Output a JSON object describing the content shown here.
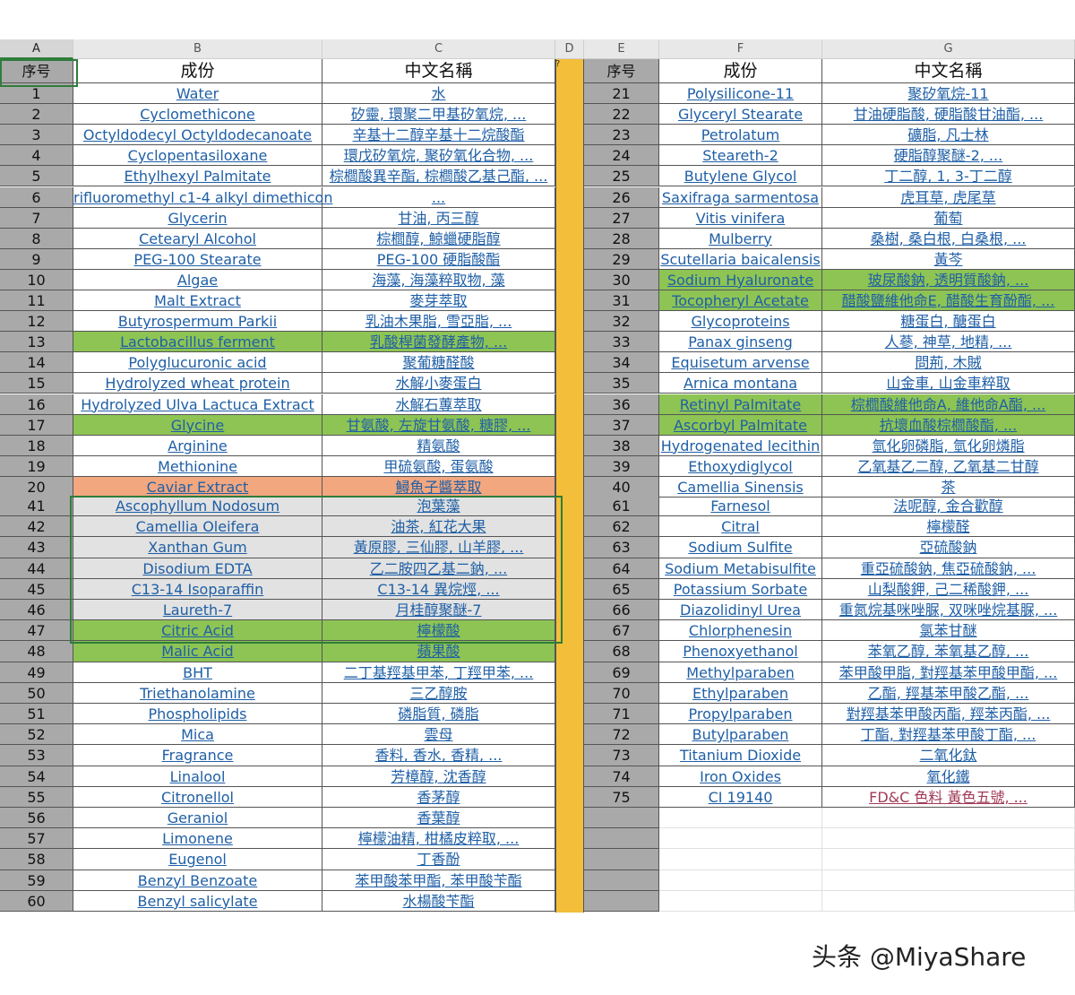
{
  "column_letters": [
    "A",
    "B",
    "C",
    "D",
    "E",
    "F",
    "G"
  ],
  "headers": {
    "num": "序号",
    "ingredient": "成份",
    "chinese": "中文名稱"
  },
  "comment_marker": "?",
  "left_rows": [
    {
      "n": "1",
      "en": "Water",
      "zh": "水",
      "hl": ""
    },
    {
      "n": "2",
      "en": "Cyclomethicone",
      "zh": "矽靈, 環聚二甲基矽氧烷, ...",
      "hl": ""
    },
    {
      "n": "3",
      "en": "Octyldodecyl Octyldodecanoate",
      "zh": "辛基十二醇辛基十二烷酸酯",
      "hl": ""
    },
    {
      "n": "4",
      "en": "Cyclopentasiloxane",
      "zh": "環戊矽氧烷, 聚矽氧化合物, ...",
      "hl": ""
    },
    {
      "n": "5",
      "en": "Ethylhexyl Palmitate",
      "zh": "棕櫚酸異辛酯, 棕櫚酸乙基己酯, ...",
      "hl": ""
    },
    {
      "n": "6",
      "en": "rifluoromethyl c1-4 alkyl dimethicon",
      "zh": "...",
      "hl": ""
    },
    {
      "n": "7",
      "en": "Glycerin",
      "zh": "甘油, 丙三醇",
      "hl": ""
    },
    {
      "n": "8",
      "en": "Cetearyl Alcohol",
      "zh": "棕櫚醇, 鯨蠟硬脂醇",
      "hl": ""
    },
    {
      "n": "9",
      "en": "PEG-100 Stearate",
      "zh": "PEG-100 硬脂酸酯",
      "hl": ""
    },
    {
      "n": "10",
      "en": "Algae",
      "zh": "海藻, 海藻粹取物, 藻",
      "hl": ""
    },
    {
      "n": "11",
      "en": "Malt Extract",
      "zh": "麥芽萃取",
      "hl": ""
    },
    {
      "n": "12",
      "en": "Butyrospermum Parkii",
      "zh": "乳油木果脂, 雪亞脂, ...",
      "hl": ""
    },
    {
      "n": "13",
      "en": "Lactobacillus ferment",
      "zh": "乳酸桿菌發酵產物, ...",
      "hl": "green"
    },
    {
      "n": "14",
      "en": "Polyglucuronic acid",
      "zh": "聚葡糖醛酸",
      "hl": ""
    },
    {
      "n": "15",
      "en": "Hydrolyzed wheat protein",
      "zh": "水解小麥蛋白",
      "hl": ""
    },
    {
      "n": "16",
      "en": "Hydrolyzed Ulva Lactuca Extract",
      "zh": "水解石蓴萃取",
      "hl": ""
    },
    {
      "n": "17",
      "en": "Glycine",
      "zh": "甘氨酸, 左旋甘氨酸, 糖膠, ...",
      "hl": "green"
    },
    {
      "n": "18",
      "en": "Arginine",
      "zh": "精氨酸",
      "hl": ""
    },
    {
      "n": "19",
      "en": "Methionine",
      "zh": "甲硫氨酸, 蛋氨酸",
      "hl": ""
    },
    {
      "n": "20",
      "en": "Caviar Extract",
      "zh": "鱘魚子醬萃取",
      "hl": "orange"
    },
    {
      "n": "41",
      "en": "Ascophyllum Nodosum",
      "zh": "泡葉藻",
      "hl": "gray"
    },
    {
      "n": "42",
      "en": "Camellia Oleifera",
      "zh": "油茶, 紅花大果",
      "hl": "gray"
    },
    {
      "n": "43",
      "en": "Xanthan Gum",
      "zh": "黃原膠, 三仙膠, 山羊膠, ...",
      "hl": "gray"
    },
    {
      "n": "44",
      "en": "Disodium EDTA",
      "zh": "乙二胺四乙基二鈉, ...",
      "hl": "gray"
    },
    {
      "n": "45",
      "en": "C13-14 Isoparaffin",
      "zh": "C13-14 異烷烴, ...",
      "hl": "gray"
    },
    {
      "n": "46",
      "en": "Laureth-7",
      "zh": "月桂醇聚醚-7",
      "hl": "gray"
    },
    {
      "n": "47",
      "en": "Citric Acid",
      "zh": "檸檬酸",
      "hl": "green"
    },
    {
      "n": "48",
      "en": "Malic Acid",
      "zh": "蘋果酸",
      "hl": "green"
    },
    {
      "n": "49",
      "en": "BHT",
      "zh": "二丁基羥基甲苯, 丁羥甲苯, ...",
      "hl": ""
    },
    {
      "n": "50",
      "en": "Triethanolamine",
      "zh": "三乙醇胺",
      "hl": ""
    },
    {
      "n": "51",
      "en": "Phospholipids",
      "zh": "磷脂質, 磷脂",
      "hl": ""
    },
    {
      "n": "52",
      "en": "Mica",
      "zh": "雲母",
      "hl": ""
    },
    {
      "n": "53",
      "en": "Fragrance",
      "zh": "香料, 香水, 香精, ...",
      "hl": ""
    },
    {
      "n": "54",
      "en": "Linalool",
      "zh": "芳樟醇, 沈香醇",
      "hl": ""
    },
    {
      "n": "55",
      "en": "Citronellol",
      "zh": "香茅醇",
      "hl": ""
    },
    {
      "n": "56",
      "en": "Geraniol",
      "zh": "香葉醇",
      "hl": ""
    },
    {
      "n": "57",
      "en": "Limonene",
      "zh": "檸檬油精, 柑橘皮粹取, ...",
      "hl": ""
    },
    {
      "n": "58",
      "en": "Eugenol",
      "zh": "丁香酚",
      "hl": ""
    },
    {
      "n": "59",
      "en": "Benzyl Benzoate",
      "zh": "苯甲酸苯甲酯, 苯甲酸苄酯",
      "hl": ""
    },
    {
      "n": "60",
      "en": "Benzyl salicylate",
      "zh": "水楊酸苄酯",
      "hl": ""
    }
  ],
  "right_rows": [
    {
      "n": "21",
      "en": "Polysilicone-11",
      "zh": "聚矽氧烷-11",
      "hl": ""
    },
    {
      "n": "22",
      "en": "Glyceryl Stearate",
      "zh": "甘油硬脂酸, 硬脂酸甘油酯, ...",
      "hl": ""
    },
    {
      "n": "23",
      "en": "Petrolatum",
      "zh": "礦脂, 凡士林",
      "hl": ""
    },
    {
      "n": "24",
      "en": "Steareth-2",
      "zh": "硬脂醇聚醚-2, ...",
      "hl": ""
    },
    {
      "n": "25",
      "en": "Butylene Glycol",
      "zh": "丁二醇, 1, 3-丁二醇",
      "hl": ""
    },
    {
      "n": "26",
      "en": "Saxifraga sarmentosa",
      "zh": "虎耳草, 虎尾草",
      "hl": ""
    },
    {
      "n": "27",
      "en": "Vitis vinifera",
      "zh": "葡萄",
      "hl": ""
    },
    {
      "n": "28",
      "en": "Mulberry",
      "zh": "桑樹, 桑白根, 白桑根, ...",
      "hl": ""
    },
    {
      "n": "29",
      "en": "Scutellaria baicalensis",
      "zh": "黃芩",
      "hl": ""
    },
    {
      "n": "30",
      "en": "Sodium Hyaluronate",
      "zh": "玻尿酸鈉, 透明質酸鈉, ...",
      "hl": "green"
    },
    {
      "n": "31",
      "en": "Tocopheryl Acetate",
      "zh": "醋酸鹽維他命E, 醋酸生育酚酯, ...",
      "hl": "green"
    },
    {
      "n": "32",
      "en": "Glycoproteins",
      "zh": "糖蛋白, 醣蛋白",
      "hl": ""
    },
    {
      "n": "33",
      "en": "Panax ginseng",
      "zh": "人蔘, 神草, 地精, ...",
      "hl": ""
    },
    {
      "n": "34",
      "en": "Equisetum arvense",
      "zh": "問荊, 木賊",
      "hl": ""
    },
    {
      "n": "35",
      "en": "Arnica montana",
      "zh": "山金車, 山金車粹取",
      "hl": ""
    },
    {
      "n": "36",
      "en": "Retinyl Palmitate",
      "zh": "棕櫚酸維他命A, 維他命A酯, ...",
      "hl": "green"
    },
    {
      "n": "37",
      "en": "Ascorbyl Palmitate",
      "zh": "抗壞血酸棕櫚酸酯, ...",
      "hl": "green"
    },
    {
      "n": "38",
      "en": "Hydrogenated lecithin",
      "zh": "氫化卵磷脂, 氫化卵燐脂",
      "hl": ""
    },
    {
      "n": "39",
      "en": "Ethoxydiglycol",
      "zh": "乙氧基乙二醇, 乙氧基二甘醇",
      "hl": ""
    },
    {
      "n": "40",
      "en": "Camellia Sinensis",
      "zh": "茶",
      "hl": ""
    },
    {
      "n": "61",
      "en": "Farnesol",
      "zh": "法呢醇, 金合歡醇",
      "hl": ""
    },
    {
      "n": "62",
      "en": "Citral",
      "zh": "檸檬醛",
      "hl": ""
    },
    {
      "n": "63",
      "en": "Sodium Sulfite",
      "zh": "亞硫酸鈉",
      "hl": ""
    },
    {
      "n": "64",
      "en": "Sodium Metabisulfite",
      "zh": "重亞硫酸鈉, 焦亞硫酸鈉, ...",
      "hl": ""
    },
    {
      "n": "65",
      "en": "Potassium Sorbate",
      "zh": "山梨酸鉀, 己二稀酸鉀, ...",
      "hl": ""
    },
    {
      "n": "66",
      "en": "Diazolidinyl Urea",
      "zh": "重氮烷基咪唑脲, 双咪唑烷基脲, ...",
      "hl": ""
    },
    {
      "n": "67",
      "en": "Chlorphenesin",
      "zh": "氯苯甘醚",
      "hl": ""
    },
    {
      "n": "68",
      "en": "Phenoxyethanol",
      "zh": "苯氧乙醇, 苯氧基乙醇, ...",
      "hl": ""
    },
    {
      "n": "69",
      "en": "Methylparaben",
      "zh": "苯甲酸甲脂, 對羥基苯甲酸甲酯, ...",
      "hl": ""
    },
    {
      "n": "70",
      "en": "Ethylparaben",
      "zh": "乙酯, 羥基苯甲酸乙酯, ...",
      "hl": ""
    },
    {
      "n": "71",
      "en": "Propylparaben",
      "zh": "對羥基苯甲酸丙酯, 羥苯丙酯, ...",
      "hl": ""
    },
    {
      "n": "72",
      "en": "Butylparaben",
      "zh": "丁酯, 對羥基苯甲酸丁酯, ...",
      "hl": ""
    },
    {
      "n": "73",
      "en": "Titanium Dioxide",
      "zh": "二氧化鈦",
      "hl": ""
    },
    {
      "n": "74",
      "en": "Iron Oxides",
      "zh": "氧化鐵",
      "hl": ""
    },
    {
      "n": "75",
      "en": "CI 19140",
      "zh": "FD&C 色料 黃色五號, ...",
      "hl": "red"
    }
  ],
  "watermark": "头条 @MiyaShare",
  "colors": {
    "green": "#8dc454",
    "orange": "#f2a77f",
    "gray": "#e2e2e2",
    "separator": "#f3bf3a",
    "link": "#1f5fa6"
  }
}
